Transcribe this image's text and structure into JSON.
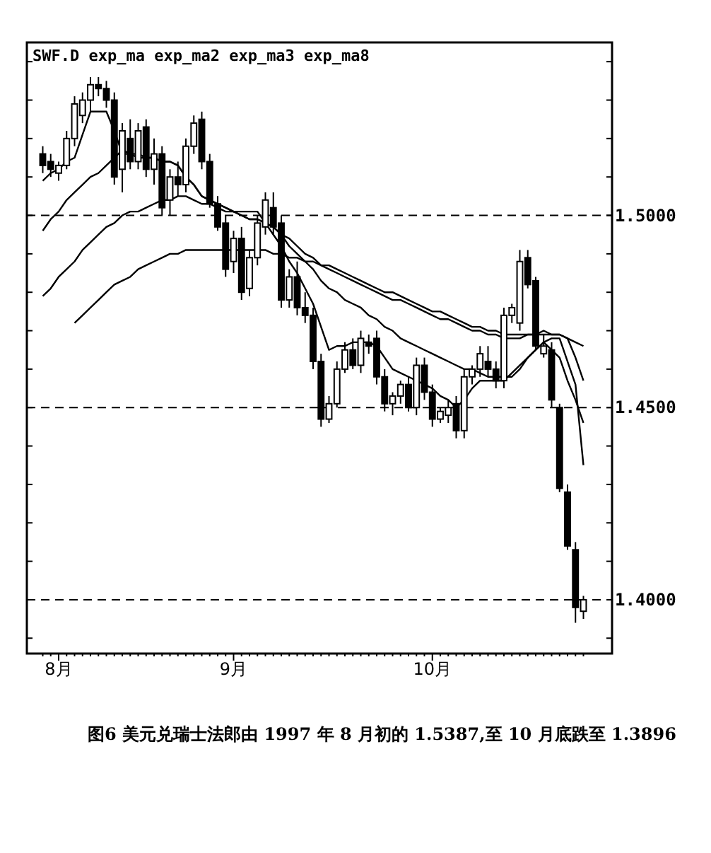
{
  "chart_data": {
    "type": "candlestick",
    "categories": [
      null,
      null,
      "8月",
      null,
      null,
      null,
      null,
      null,
      null,
      null,
      null,
      null,
      null,
      null,
      null,
      null,
      null,
      null,
      null,
      null,
      null,
      null,
      null,
      null,
      "9月",
      null,
      null,
      null,
      null,
      null,
      null,
      null,
      null,
      null,
      null,
      null,
      null,
      null,
      null,
      null,
      null,
      null,
      null,
      null,
      null,
      null,
      null,
      null,
      null,
      "10月",
      null,
      null,
      null,
      null,
      null,
      null,
      null,
      null,
      null,
      null,
      null,
      null,
      null,
      null,
      null,
      null,
      null,
      null,
      null
    ],
    "ylim": [
      1.386,
      1.545
    ],
    "yticks": [
      {
        "value": 1.39,
        "label": null
      },
      {
        "value": 1.4,
        "label": "1.4000"
      },
      {
        "value": 1.41,
        "label": null
      },
      {
        "value": 1.42,
        "label": null
      },
      {
        "value": 1.43,
        "label": null
      },
      {
        "value": 1.44,
        "label": null
      },
      {
        "value": 1.45,
        "label": "1.4500"
      },
      {
        "value": 1.46,
        "label": null
      },
      {
        "value": 1.47,
        "label": null
      },
      {
        "value": 1.48,
        "label": null
      },
      {
        "value": 1.49,
        "label": null
      },
      {
        "value": 1.5,
        "label": "1.5000"
      },
      {
        "value": 1.51,
        "label": null
      },
      {
        "value": 1.52,
        "label": null
      },
      {
        "value": 1.53,
        "label": null
      },
      {
        "value": 1.54,
        "label": null
      }
    ],
    "ohlc": [
      [
        1.516,
        1.518,
        1.511,
        1.513
      ],
      [
        1.514,
        1.516,
        1.51,
        1.512
      ],
      [
        1.511,
        1.514,
        1.509,
        1.513
      ],
      [
        1.513,
        1.522,
        1.512,
        1.52
      ],
      [
        1.52,
        1.531,
        1.518,
        1.529
      ],
      [
        1.526,
        1.532,
        1.524,
        1.53
      ],
      [
        1.53,
        1.536,
        1.527,
        1.534
      ],
      [
        1.534,
        1.536,
        1.531,
        1.533
      ],
      [
        1.533,
        1.535,
        1.528,
        1.53
      ],
      [
        1.53,
        1.532,
        1.508,
        1.51
      ],
      [
        1.512,
        1.524,
        1.506,
        1.522
      ],
      [
        1.52,
        1.525,
        1.512,
        1.514
      ],
      [
        1.514,
        1.524,
        1.512,
        1.522
      ],
      [
        1.523,
        1.525,
        1.51,
        1.512
      ],
      [
        1.512,
        1.52,
        1.508,
        1.516
      ],
      [
        1.516,
        1.518,
        1.5,
        1.502
      ],
      [
        1.504,
        1.512,
        1.5,
        1.51
      ],
      [
        1.51,
        1.514,
        1.505,
        1.508
      ],
      [
        1.508,
        1.52,
        1.506,
        1.518
      ],
      [
        1.518,
        1.526,
        1.516,
        1.524
      ],
      [
        1.525,
        1.527,
        1.512,
        1.514
      ],
      [
        1.514,
        1.516,
        1.502,
        1.503
      ],
      [
        1.503,
        1.505,
        1.496,
        1.497
      ],
      [
        1.498,
        1.5,
        1.484,
        1.486
      ],
      [
        1.488,
        1.496,
        1.485,
        1.494
      ],
      [
        1.494,
        1.497,
        1.478,
        1.48
      ],
      [
        1.481,
        1.491,
        1.479,
        1.489
      ],
      [
        1.489,
        1.5,
        1.487,
        1.498
      ],
      [
        1.497,
        1.506,
        1.495,
        1.504
      ],
      [
        1.502,
        1.506,
        1.495,
        1.497
      ],
      [
        1.498,
        1.5,
        1.476,
        1.478
      ],
      [
        1.478,
        1.486,
        1.476,
        1.484
      ],
      [
        1.484,
        1.488,
        1.474,
        1.476
      ],
      [
        1.476,
        1.48,
        1.472,
        1.474
      ],
      [
        1.474,
        1.476,
        1.46,
        1.462
      ],
      [
        1.462,
        1.464,
        1.445,
        1.447
      ],
      [
        1.447,
        1.453,
        1.446,
        1.451
      ],
      [
        1.451,
        1.462,
        1.45,
        1.46
      ],
      [
        1.46,
        1.467,
        1.459,
        1.465
      ],
      [
        1.465,
        1.468,
        1.46,
        1.461
      ],
      [
        1.461,
        1.47,
        1.459,
        1.468
      ],
      [
        1.467,
        1.469,
        1.464,
        1.466
      ],
      [
        1.468,
        1.47,
        1.456,
        1.458
      ],
      [
        1.458,
        1.46,
        1.449,
        1.451
      ],
      [
        1.451,
        1.454,
        1.448,
        1.453
      ],
      [
        1.453,
        1.457,
        1.451,
        1.456
      ],
      [
        1.456,
        1.458,
        1.449,
        1.45
      ],
      [
        1.45,
        1.463,
        1.448,
        1.461
      ],
      [
        1.461,
        1.463,
        1.452,
        1.454
      ],
      [
        1.454,
        1.456,
        1.445,
        1.447
      ],
      [
        1.447,
        1.45,
        1.446,
        1.449
      ],
      [
        1.448,
        1.452,
        1.446,
        1.45
      ],
      [
        1.451,
        1.453,
        1.442,
        1.444
      ],
      [
        1.444,
        1.46,
        1.442,
        1.458
      ],
      [
        1.458,
        1.461,
        1.456,
        1.46
      ],
      [
        1.46,
        1.466,
        1.458,
        1.464
      ],
      [
        1.462,
        1.466,
        1.458,
        1.46
      ],
      [
        1.46,
        1.462,
        1.455,
        1.457
      ],
      [
        1.457,
        1.476,
        1.455,
        1.474
      ],
      [
        1.474,
        1.477,
        1.472,
        1.476
      ],
      [
        1.472,
        1.491,
        1.47,
        1.488
      ],
      [
        1.489,
        1.491,
        1.481,
        1.482
      ],
      [
        1.483,
        1.484,
        1.465,
        1.466
      ],
      [
        1.464,
        1.469,
        1.463,
        1.466
      ],
      [
        1.465,
        1.467,
        1.45,
        1.452
      ],
      [
        1.45,
        1.451,
        1.428,
        1.429
      ],
      [
        1.428,
        1.43,
        1.413,
        1.414
      ],
      [
        1.413,
        1.415,
        1.394,
        1.398
      ],
      [
        1.397,
        1.401,
        1.395,
        1.4
      ]
    ],
    "series": [
      {
        "type": "line",
        "color": "#000000",
        "values": [
          null,
          null,
          null,
          null,
          1.472,
          1.474,
          1.476,
          1.478,
          1.48,
          1.482,
          1.483,
          1.484,
          1.486,
          1.487,
          1.488,
          1.489,
          1.49,
          1.49,
          1.491,
          1.491,
          1.491,
          1.491,
          1.491,
          1.491,
          1.491,
          1.491,
          1.491,
          1.491,
          1.491,
          1.49,
          1.49,
          1.489,
          1.489,
          1.488,
          1.488,
          1.487,
          1.487,
          1.486,
          1.485,
          1.484,
          1.483,
          1.482,
          1.481,
          1.48,
          1.48,
          1.479,
          1.478,
          1.477,
          1.476,
          1.475,
          1.475,
          1.474,
          1.473,
          1.472,
          1.471,
          1.471,
          1.47,
          1.47,
          1.469,
          1.469,
          1.469,
          1.469,
          1.469,
          1.469,
          1.469,
          1.469,
          1.468,
          1.467,
          1.466
        ]
      },
      {
        "type": "line",
        "color": "#000000",
        "values": [
          1.479,
          1.481,
          1.484,
          1.486,
          1.488,
          1.491,
          1.493,
          1.495,
          1.497,
          1.498,
          1.5,
          1.501,
          1.501,
          1.502,
          1.503,
          1.504,
          1.504,
          1.505,
          1.505,
          1.504,
          1.503,
          1.503,
          1.502,
          1.501,
          1.501,
          1.5,
          1.499,
          1.499,
          1.498,
          1.497,
          1.495,
          1.494,
          1.492,
          1.49,
          1.489,
          1.487,
          1.486,
          1.485,
          1.484,
          1.483,
          1.482,
          1.481,
          1.48,
          1.479,
          1.478,
          1.478,
          1.477,
          1.476,
          1.475,
          1.474,
          1.473,
          1.473,
          1.472,
          1.471,
          1.47,
          1.47,
          1.469,
          1.469,
          1.468,
          1.468,
          1.468,
          1.469,
          1.469,
          1.47,
          1.469,
          1.469,
          1.468,
          1.463,
          1.457
        ]
      },
      {
        "type": "line",
        "color": "#000000",
        "values": [
          1.496,
          1.499,
          1.501,
          1.504,
          1.506,
          1.508,
          1.51,
          1.511,
          1.513,
          1.515,
          1.517,
          1.516,
          1.516,
          1.515,
          1.515,
          1.514,
          1.514,
          1.513,
          1.51,
          1.508,
          1.505,
          1.504,
          1.503,
          1.502,
          1.501,
          1.5,
          1.499,
          1.499,
          1.498,
          1.497,
          1.495,
          1.492,
          1.49,
          1.488,
          1.486,
          1.483,
          1.481,
          1.48,
          1.478,
          1.477,
          1.476,
          1.474,
          1.473,
          1.471,
          1.47,
          1.468,
          1.467,
          1.466,
          1.465,
          1.464,
          1.463,
          1.462,
          1.461,
          1.46,
          1.46,
          1.459,
          1.458,
          1.458,
          1.458,
          1.458,
          1.46,
          1.463,
          1.465,
          1.467,
          1.465,
          1.463,
          1.457,
          1.452,
          1.446
        ]
      },
      {
        "type": "line",
        "color": "#000000",
        "values": [
          1.509,
          1.511,
          1.512,
          1.514,
          1.515,
          1.521,
          1.527,
          1.527,
          1.527,
          1.522,
          1.516,
          1.516,
          1.515,
          1.515,
          1.515,
          1.514,
          1.514,
          1.513,
          1.51,
          1.508,
          1.505,
          1.504,
          1.503,
          1.502,
          1.501,
          1.501,
          1.501,
          1.501,
          1.498,
          1.495,
          1.492,
          1.488,
          1.485,
          1.481,
          1.477,
          1.471,
          1.465,
          1.466,
          1.466,
          1.467,
          1.467,
          1.467,
          1.466,
          1.463,
          1.46,
          1.459,
          1.458,
          1.457,
          1.456,
          1.455,
          1.453,
          1.452,
          1.45,
          1.452,
          1.455,
          1.457,
          1.457,
          1.457,
          1.457,
          1.459,
          1.461,
          1.463,
          1.465,
          1.467,
          1.468,
          1.468,
          1.462,
          1.456,
          1.435
        ]
      }
    ],
    "ref_lines": [
      {
        "axis": "y",
        "value": 1.5,
        "line_style": "dashed"
      },
      {
        "axis": "y",
        "value": 1.45,
        "line_style": "dashed"
      },
      {
        "axis": "y",
        "value": 1.4,
        "line_style": "dashed"
      }
    ],
    "annotations": [
      "SWF.D exp_ma exp_ma2 exp_ma3 exp_ma8",
      "图6  美元兑瑞士法郎由 1997 年 8 月初的 1.5387,至 10 月底跌至 1.3896"
    ]
  }
}
